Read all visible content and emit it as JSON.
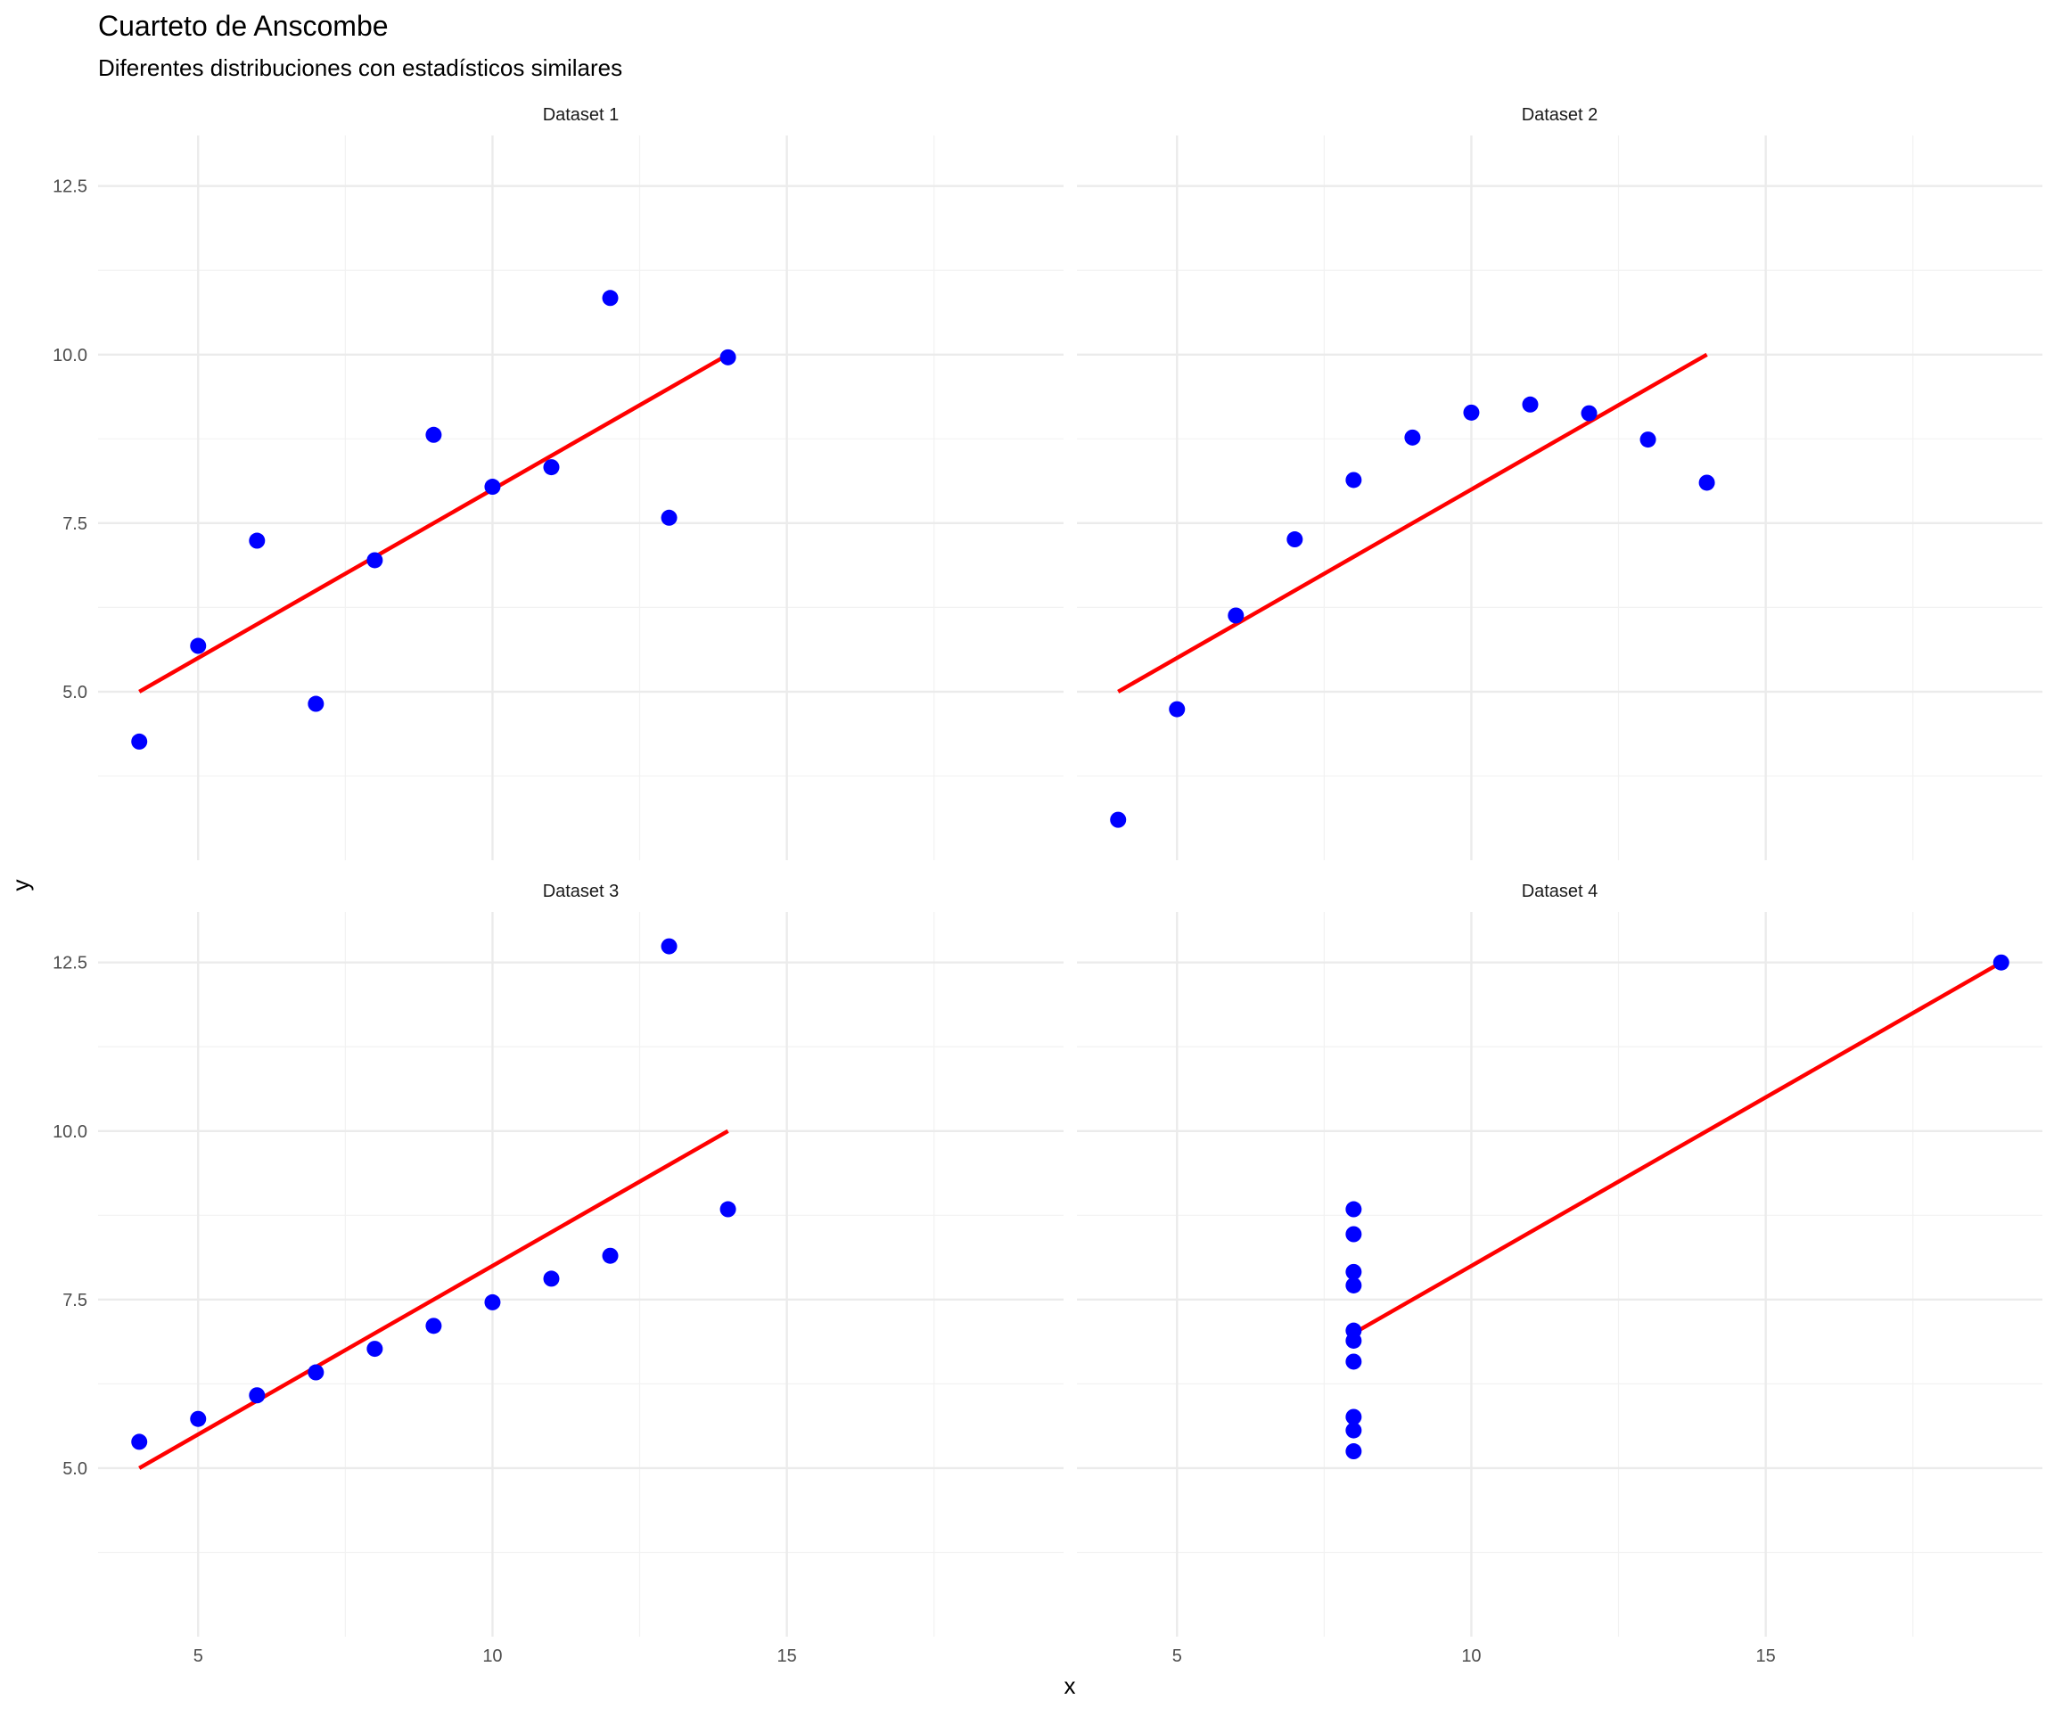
{
  "chart_data": {
    "type": "scatter",
    "title": "Cuarteto de Anscombe",
    "subtitle": "Diferentes distribuciones con estadísticos similares",
    "xlabel": "x",
    "ylabel": "y",
    "xlim": [
      3.3,
      19.7
    ],
    "ylim": [
      2.5,
      13.25
    ],
    "x_ticks": [
      5,
      10,
      15
    ],
    "y_ticks": [
      5.0,
      7.5,
      10.0,
      12.5
    ],
    "x_tick_labels": [
      "5",
      "10",
      "15"
    ],
    "y_tick_labels": [
      "5.0",
      "7.5",
      "10.0",
      "12.5"
    ],
    "grid": true,
    "point_color": "#0000FF",
    "line_color": "#FF0000",
    "panels": [
      {
        "name": "Dataset 1",
        "points": [
          {
            "x": 10,
            "y": 8.04
          },
          {
            "x": 8,
            "y": 6.95
          },
          {
            "x": 13,
            "y": 7.58
          },
          {
            "x": 9,
            "y": 8.81
          },
          {
            "x": 11,
            "y": 8.33
          },
          {
            "x": 14,
            "y": 9.96
          },
          {
            "x": 6,
            "y": 7.24
          },
          {
            "x": 4,
            "y": 4.26
          },
          {
            "x": 12,
            "y": 10.84
          },
          {
            "x": 7,
            "y": 4.82
          },
          {
            "x": 5,
            "y": 5.68
          }
        ],
        "fit_line": [
          {
            "x": 4,
            "y": 5.0
          },
          {
            "x": 14,
            "y": 10.0
          }
        ]
      },
      {
        "name": "Dataset 2",
        "points": [
          {
            "x": 10,
            "y": 9.14
          },
          {
            "x": 8,
            "y": 8.14
          },
          {
            "x": 13,
            "y": 8.74
          },
          {
            "x": 9,
            "y": 8.77
          },
          {
            "x": 11,
            "y": 9.26
          },
          {
            "x": 14,
            "y": 8.1
          },
          {
            "x": 6,
            "y": 6.13
          },
          {
            "x": 4,
            "y": 3.1
          },
          {
            "x": 12,
            "y": 9.13
          },
          {
            "x": 7,
            "y": 7.26
          },
          {
            "x": 5,
            "y": 4.74
          }
        ],
        "fit_line": [
          {
            "x": 4,
            "y": 5.0
          },
          {
            "x": 14,
            "y": 10.0
          }
        ]
      },
      {
        "name": "Dataset 3",
        "points": [
          {
            "x": 10,
            "y": 7.46
          },
          {
            "x": 8,
            "y": 6.77
          },
          {
            "x": 13,
            "y": 12.74
          },
          {
            "x": 9,
            "y": 7.11
          },
          {
            "x": 11,
            "y": 7.81
          },
          {
            "x": 14,
            "y": 8.84
          },
          {
            "x": 6,
            "y": 6.08
          },
          {
            "x": 4,
            "y": 5.39
          },
          {
            "x": 12,
            "y": 8.15
          },
          {
            "x": 7,
            "y": 6.42
          },
          {
            "x": 5,
            "y": 5.73
          }
        ],
        "fit_line": [
          {
            "x": 4,
            "y": 5.0
          },
          {
            "x": 14,
            "y": 10.0
          }
        ]
      },
      {
        "name": "Dataset 4",
        "points": [
          {
            "x": 8,
            "y": 6.58
          },
          {
            "x": 8,
            "y": 5.76
          },
          {
            "x": 8,
            "y": 7.71
          },
          {
            "x": 8,
            "y": 8.84
          },
          {
            "x": 8,
            "y": 8.47
          },
          {
            "x": 8,
            "y": 7.04
          },
          {
            "x": 8,
            "y": 5.25
          },
          {
            "x": 19,
            "y": 12.5
          },
          {
            "x": 8,
            "y": 5.56
          },
          {
            "x": 8,
            "y": 7.91
          },
          {
            "x": 8,
            "y": 6.89
          }
        ],
        "fit_line": [
          {
            "x": 8,
            "y": 7.0
          },
          {
            "x": 19,
            "y": 12.5
          }
        ]
      }
    ]
  }
}
